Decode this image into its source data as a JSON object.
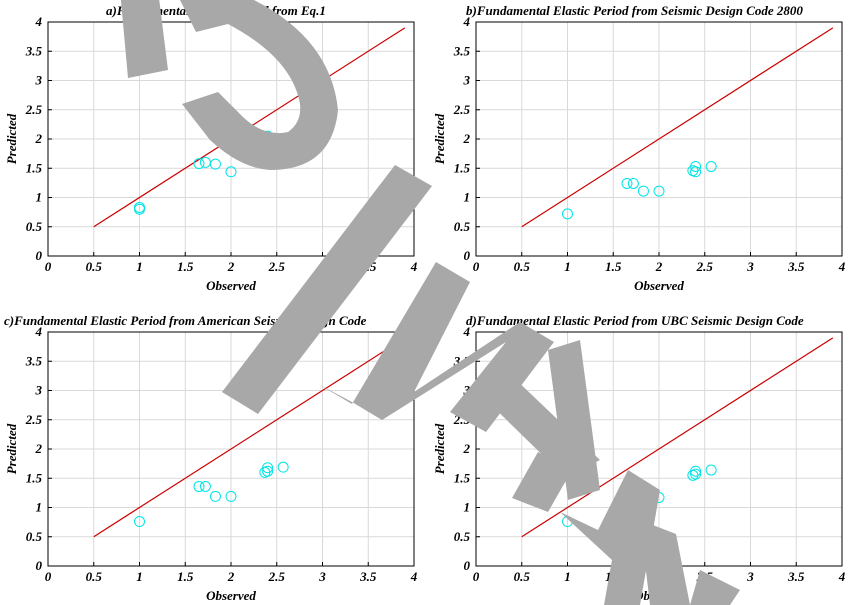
{
  "chart_data": [
    {
      "type": "scatter",
      "title": "a)Fundamental Elastic Period from Eq.1",
      "xlabel": "Observed",
      "ylabel": "Predicted",
      "xlim": [
        0,
        4
      ],
      "ylim": [
        0,
        4
      ],
      "xticks": [
        0,
        0.5,
        1,
        1.5,
        2,
        2.5,
        3,
        3.5,
        4
      ],
      "yticks": [
        0,
        0.5,
        1,
        1.5,
        2,
        2.5,
        3,
        3.5,
        4
      ],
      "grid": true,
      "line": {
        "x": [
          0.5,
          3.9
        ],
        "y": [
          0.5,
          3.9
        ],
        "color": "#cc0000"
      },
      "marker_color": "#00e5e5",
      "points": {
        "x": [
          1.0,
          1.0,
          1.65,
          1.72,
          1.83,
          2.0,
          2.37,
          2.4,
          2.4,
          2.57
        ],
        "y": [
          0.8,
          0.83,
          1.58,
          1.6,
          1.57,
          1.44,
          2.02,
          2.05,
          1.98,
          1.93
        ]
      }
    },
    {
      "type": "scatter",
      "title": "b)Fundamental Elastic Period from Seismic Design Code 2800",
      "xlabel": "Observed",
      "ylabel": "Predicted",
      "xlim": [
        0,
        4
      ],
      "ylim": [
        0,
        4
      ],
      "xticks": [
        0,
        0.5,
        1,
        1.5,
        2,
        2.5,
        3,
        3.5,
        4
      ],
      "yticks": [
        0,
        0.5,
        1,
        1.5,
        2,
        2.5,
        3,
        3.5,
        4
      ],
      "grid": true,
      "line": {
        "x": [
          0.5,
          3.9
        ],
        "y": [
          0.5,
          3.9
        ],
        "color": "#cc0000"
      },
      "marker_color": "#00e5e5",
      "points": {
        "x": [
          1.0,
          1.65,
          1.72,
          1.83,
          2.0,
          2.37,
          2.4,
          2.4,
          2.57
        ],
        "y": [
          0.72,
          1.24,
          1.24,
          1.11,
          1.11,
          1.46,
          1.44,
          1.53,
          1.53
        ]
      }
    },
    {
      "type": "scatter",
      "title": "c)Fundamental Elastic Period from American Seismic Design Code",
      "xlabel": "Observed",
      "ylabel": "Predicted",
      "xlim": [
        0,
        4
      ],
      "ylim": [
        0,
        4
      ],
      "xticks": [
        0,
        0.5,
        1,
        1.5,
        2,
        2.5,
        3,
        3.5,
        4
      ],
      "yticks": [
        0,
        0.5,
        1,
        1.5,
        2,
        2.5,
        3,
        3.5,
        4
      ],
      "grid": true,
      "line": {
        "x": [
          0.5,
          3.9
        ],
        "y": [
          0.5,
          3.9
        ],
        "color": "#cc0000"
      },
      "marker_color": "#00e5e5",
      "points": {
        "x": [
          1.0,
          1.65,
          1.72,
          1.83,
          2.0,
          2.37,
          2.4,
          2.4,
          2.57
        ],
        "y": [
          0.76,
          1.36,
          1.36,
          1.19,
          1.19,
          1.6,
          1.62,
          1.68,
          1.69
        ]
      }
    },
    {
      "type": "scatter",
      "title": "d)Fundamental Elastic Period from UBC Seismic Design Code",
      "xlabel": "Observed",
      "ylabel": "Predicted",
      "xlim": [
        0,
        4
      ],
      "ylim": [
        0,
        4
      ],
      "xticks": [
        0,
        0.5,
        1,
        1.5,
        2,
        2.5,
        3,
        3.5,
        4
      ],
      "yticks": [
        0,
        0.5,
        1,
        1.5,
        2,
        2.5,
        3,
        3.5,
        4
      ],
      "grid": true,
      "line": {
        "x": [
          0.5,
          3.9
        ],
        "y": [
          0.5,
          3.9
        ],
        "color": "#cc0000"
      },
      "marker_color": "#00e5e5",
      "points": {
        "x": [
          1.0,
          1.65,
          1.72,
          1.83,
          2.0,
          2.37,
          2.4,
          2.4,
          2.57
        ],
        "y": [
          0.76,
          1.34,
          1.33,
          1.17,
          1.17,
          1.55,
          1.57,
          1.62,
          1.64
        ]
      }
    }
  ],
  "watermark_color": "#a8a8a8"
}
